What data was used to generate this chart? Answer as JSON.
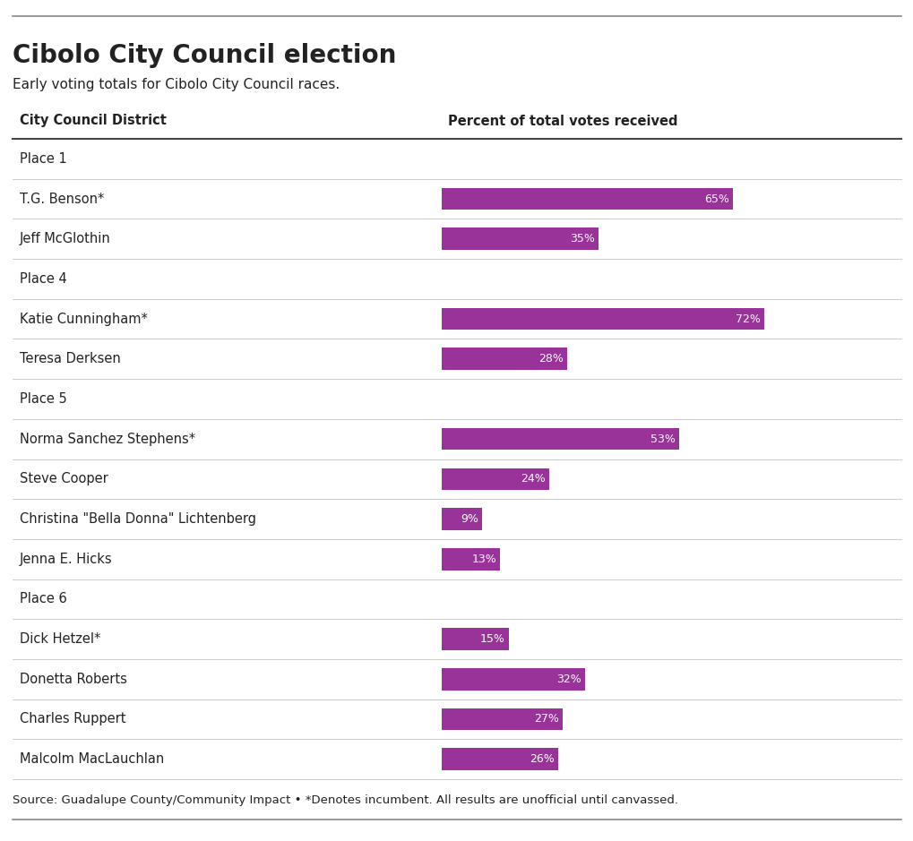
{
  "title": "Cibolo City Council election",
  "subtitle": "Early voting totals for Cibolo City Council races.",
  "col1_header": "City Council District",
  "col2_header": "Percent of total votes received",
  "source": "Source: Guadalupe County/Community Impact • *Denotes incumbent. All results are unofficial until canvassed.",
  "rows": [
    {
      "label": "Place 1",
      "type": "group",
      "value": null
    },
    {
      "label": "T.G. Benson*",
      "type": "candidate",
      "value": 65
    },
    {
      "label": "Jeff McGlothin",
      "type": "candidate",
      "value": 35
    },
    {
      "label": "Place 4",
      "type": "group",
      "value": null
    },
    {
      "label": "Katie Cunningham*",
      "type": "candidate",
      "value": 72
    },
    {
      "label": "Teresa Derksen",
      "type": "candidate",
      "value": 28
    },
    {
      "label": "Place 5",
      "type": "group",
      "value": null
    },
    {
      "label": "Norma Sanchez Stephens*",
      "type": "candidate",
      "value": 53
    },
    {
      "label": "Steve Cooper",
      "type": "candidate",
      "value": 24
    },
    {
      "label": "Christina \"Bella Donna\" Lichtenberg",
      "type": "candidate",
      "value": 9
    },
    {
      "label": "Jenna E. Hicks",
      "type": "candidate",
      "value": 13
    },
    {
      "label": "Place 6",
      "type": "group",
      "value": null
    },
    {
      "label": "Dick Hetzel*",
      "type": "candidate",
      "value": 15
    },
    {
      "label": "Donetta Roberts",
      "type": "candidate",
      "value": 32
    },
    {
      "label": "Charles Ruppert",
      "type": "candidate",
      "value": 27
    },
    {
      "label": "Malcolm MacLauchlan",
      "type": "candidate",
      "value": 26
    }
  ],
  "bar_color": "#993399",
  "background_color": "#ffffff",
  "text_color": "#222222",
  "header_line_color": "#444444",
  "row_line_color": "#cccccc",
  "top_line_color": "#888888",
  "bottom_line_color": "#888888",
  "title_fontsize": 20,
  "subtitle_fontsize": 11,
  "header_fontsize": 10.5,
  "label_fontsize": 10.5,
  "group_fontsize": 10.5,
  "source_fontsize": 9.5,
  "bar_label_fontsize": 9
}
